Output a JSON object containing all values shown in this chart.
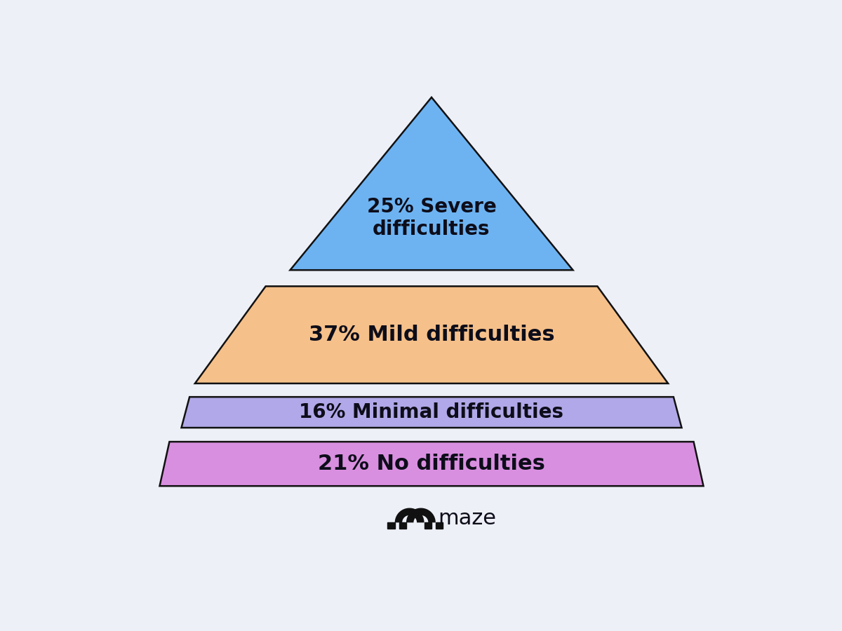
{
  "background_color": "#eef0f8",
  "layers": [
    {
      "label": "25% Severe\ndifficulties",
      "color": "#6db3f2",
      "edge_color": "#111111",
      "type": "triangle",
      "fontsize": 20
    },
    {
      "label": "37% Mild difficulties",
      "color": "#f5c08a",
      "edge_color": "#111111",
      "type": "trapezoid",
      "fontsize": 22
    },
    {
      "label": "16% Minimal difficulties",
      "color": "#b0a8e8",
      "edge_color": "#111111",
      "type": "trapezoid",
      "fontsize": 20
    },
    {
      "label": "21% No difficulties",
      "color": "#d98fe0",
      "edge_color": "#111111",
      "type": "trapezoid",
      "fontsize": 22
    }
  ],
  "text_color": "#0d0d1a",
  "logo_text": "maze",
  "logo_fontsize": 22
}
